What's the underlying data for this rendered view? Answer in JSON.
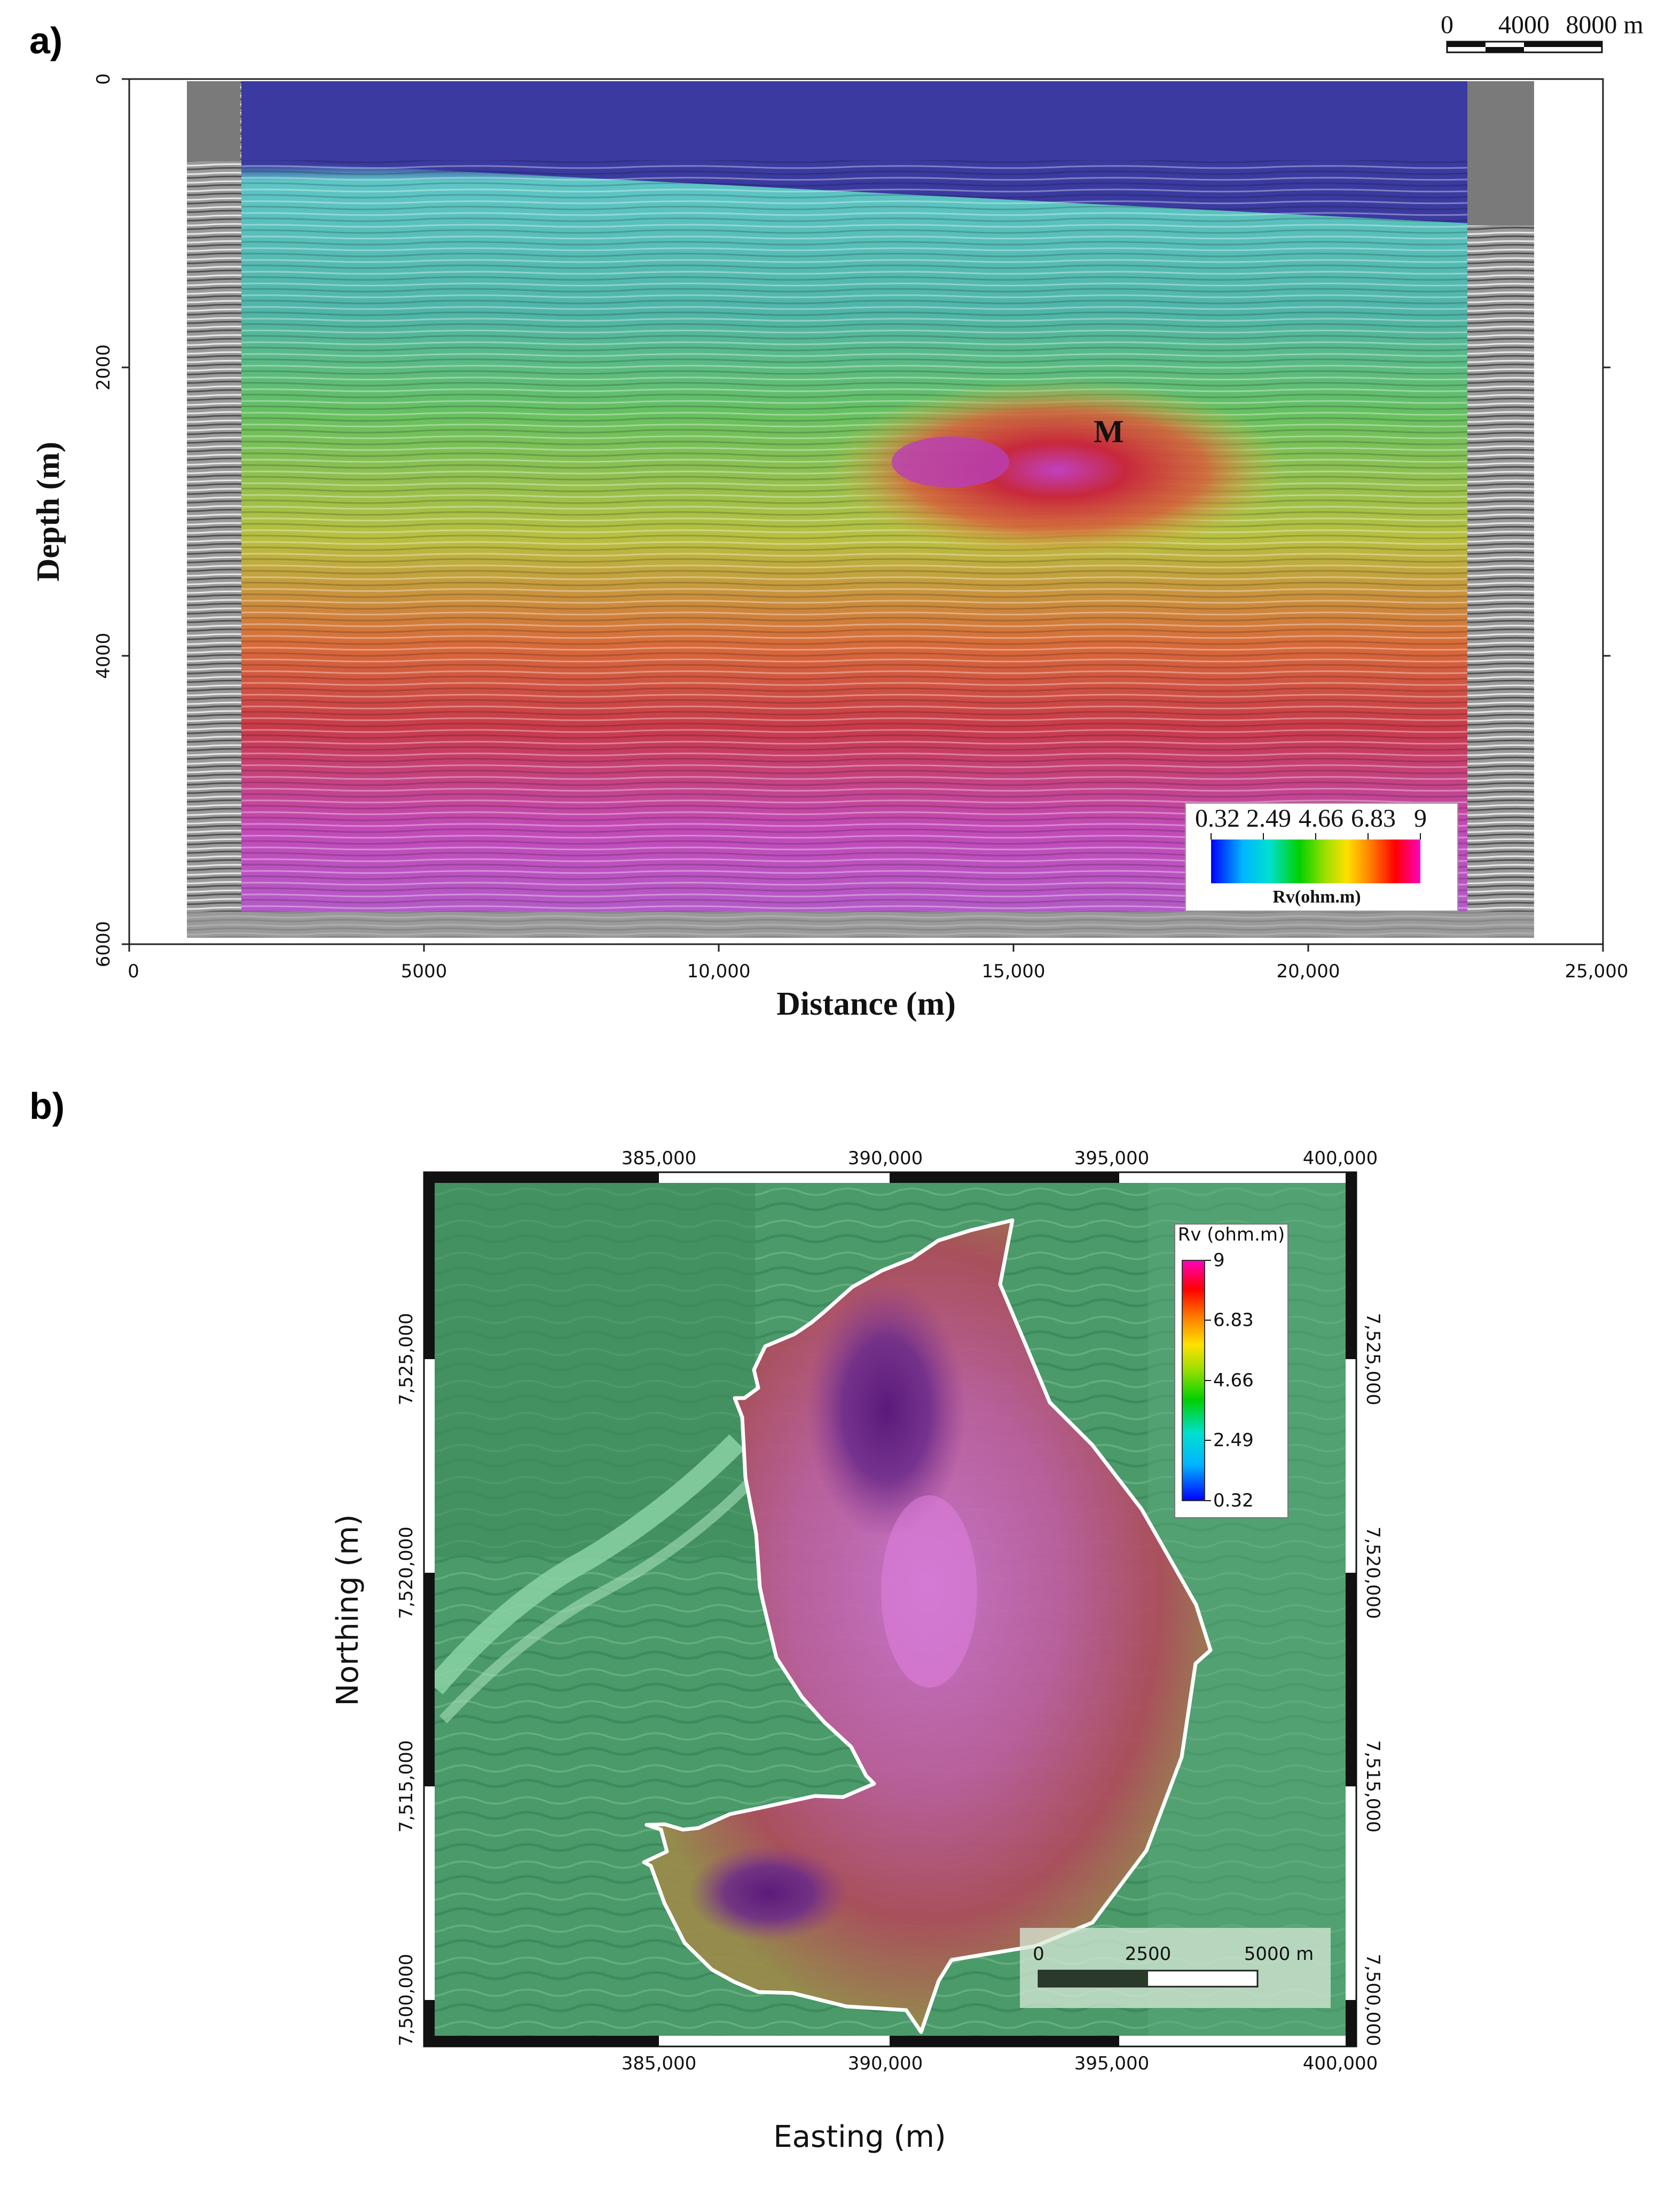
{
  "panel_a": {
    "label": "a)",
    "ylabel": "Depth (m)",
    "xlabel": "Distance (m)",
    "yticks": [
      "0",
      "2000",
      "4000",
      "6000"
    ],
    "xticks": [
      "0",
      "5000",
      "10,000",
      "15,000",
      "20,000",
      "25,000"
    ],
    "annotation": "M",
    "scalebar": {
      "labels": [
        "0",
        "4000",
        "8000 m"
      ]
    },
    "colorbar": {
      "ticks": [
        "0.32",
        "2.49",
        "4.66",
        "6.83",
        "9"
      ],
      "title": "Rv(ohm.m)"
    }
  },
  "panel_b": {
    "label": "b)",
    "xlabel": "Easting (m)",
    "ylabel": "Northing (m)",
    "xticks": [
      "385,000",
      "390,000",
      "395,000",
      "400,000"
    ],
    "yticks": [
      "7,525,000",
      "7,520,000",
      "7,515,000",
      "7,500,000"
    ],
    "colorbar": {
      "title": "Rv (ohm.m)",
      "ticks": [
        "9",
        "6.83",
        "4.66",
        "2.49",
        "0.32"
      ]
    },
    "scalebar": {
      "labels": [
        "0",
        "2500",
        "5000 m"
      ]
    }
  },
  "colors": {
    "resistivity_ramp": [
      "#0000ff",
      "#00b4ff",
      "#00e0d0",
      "#00d000",
      "#a0e000",
      "#ffe000",
      "#ff8000",
      "#ff0000",
      "#ff00c0"
    ],
    "water": "#3a3aa0",
    "outline": "#ffffff"
  }
}
